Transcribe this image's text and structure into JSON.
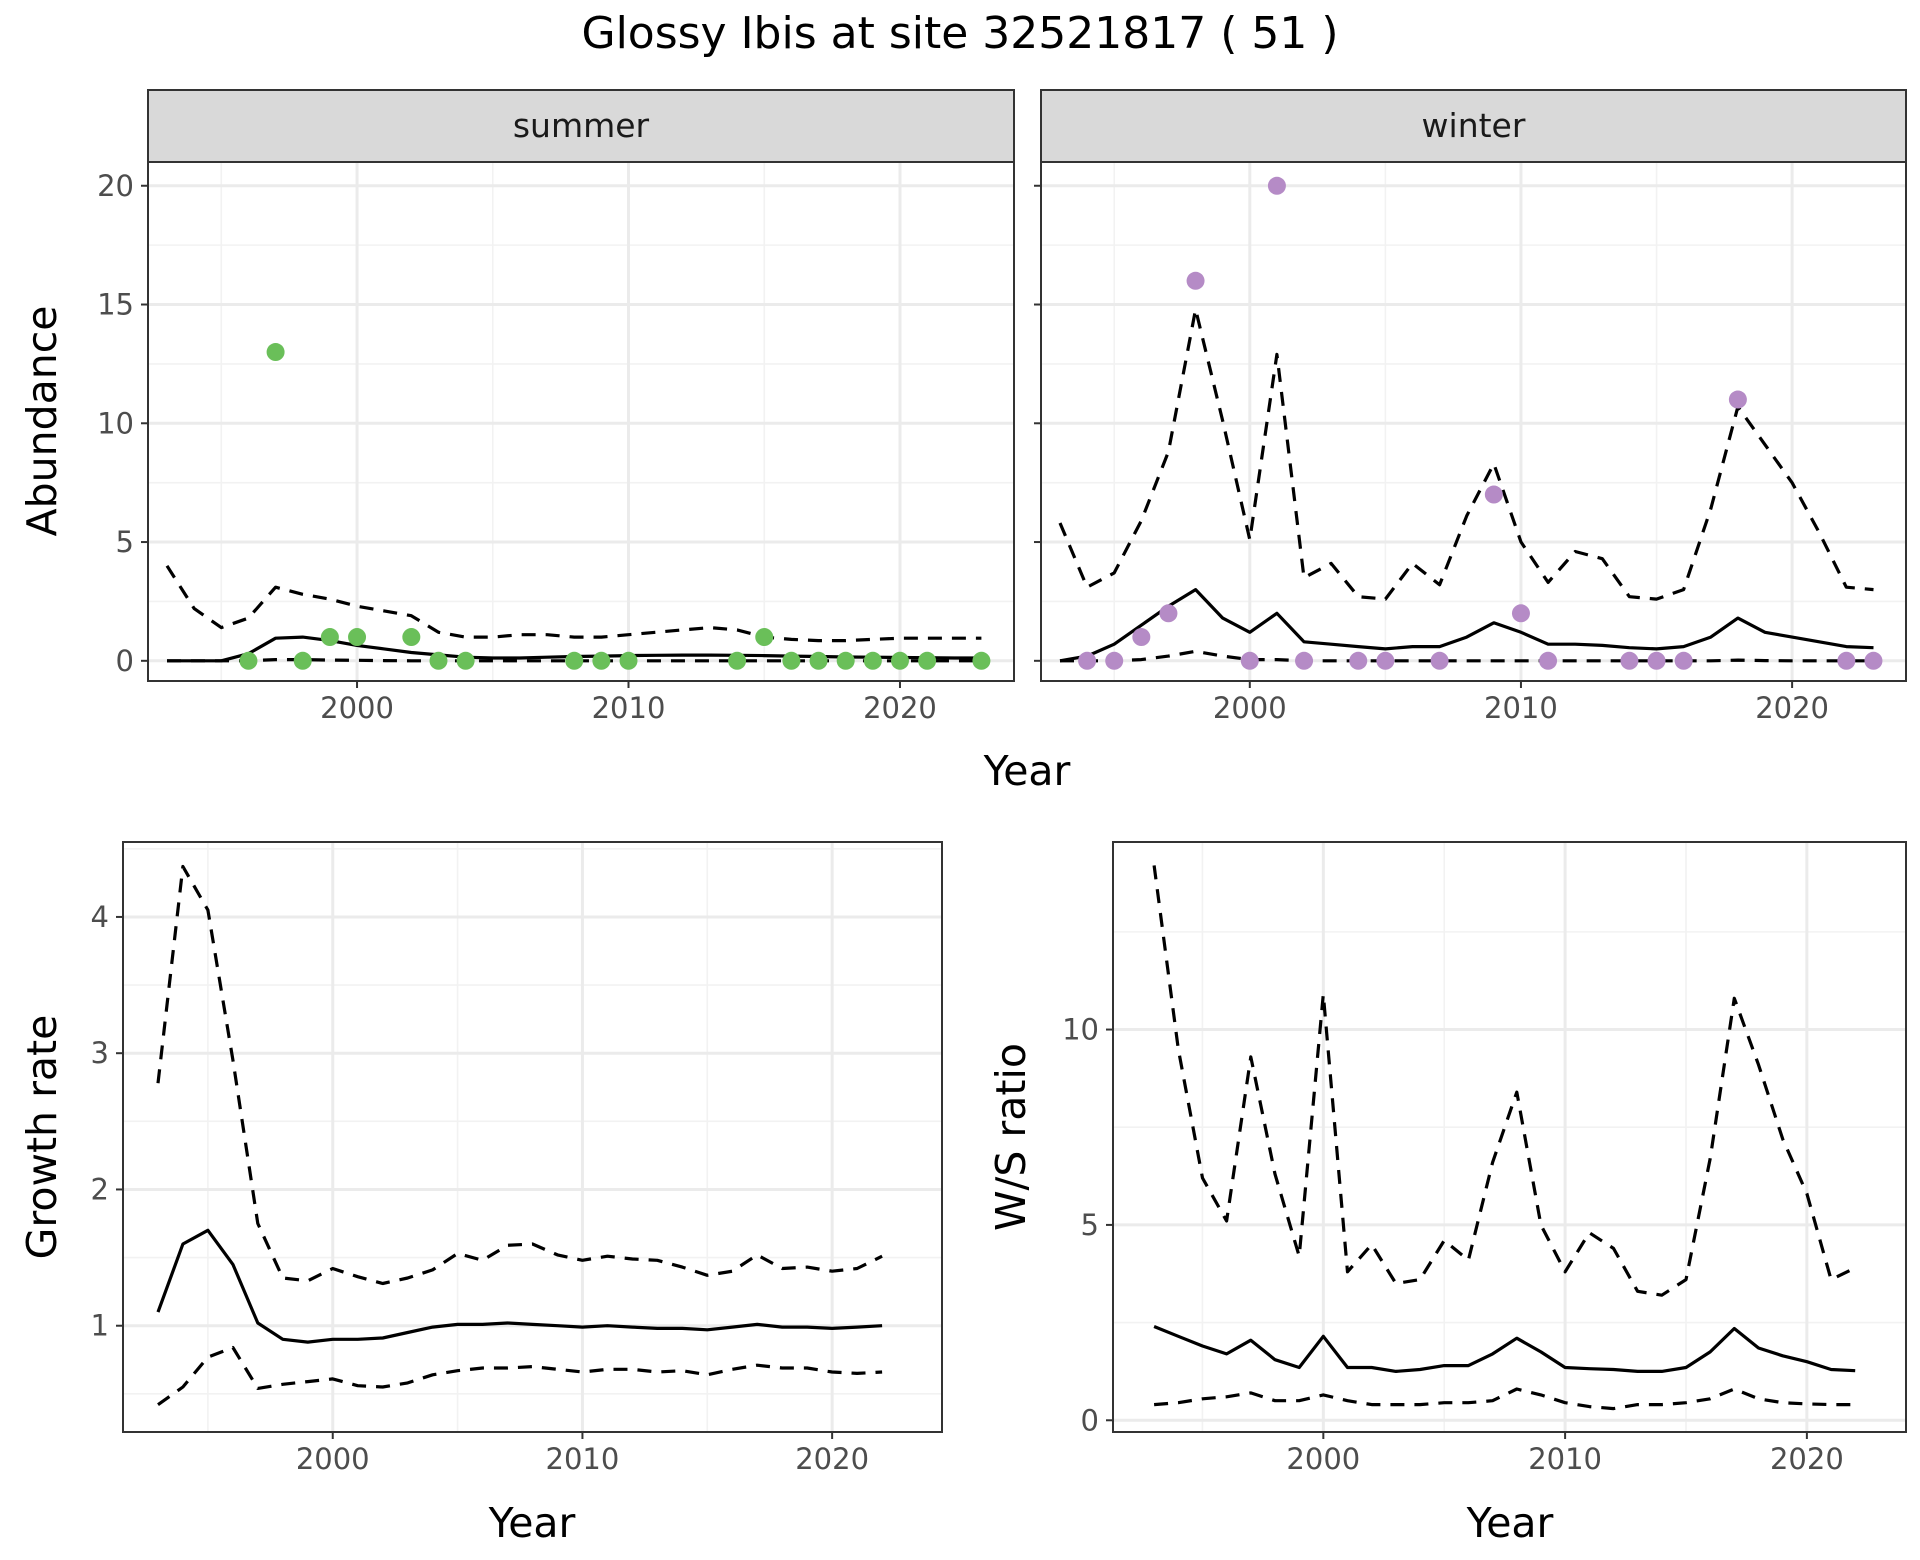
{
  "title": "Glossy Ibis at site 32521817 ( 51 )",
  "colors": {
    "summer": "#6abf59",
    "winter": "#b58bc6",
    "line": "#000000"
  },
  "chart_data": [
    {
      "id": "summer",
      "type": "line",
      "facet_label": "summer",
      "ylabel": "Abundance",
      "xlabel": "",
      "xlim": [
        1992.3,
        2024.2
      ],
      "ylim": [
        -0.85,
        21.0
      ],
      "xticks": [
        2000,
        2010,
        2020
      ],
      "yticks": [
        0,
        5,
        10,
        15,
        20
      ],
      "grid": true,
      "series": [
        {
          "style": "median",
          "x": [
            1993,
            1994,
            1995,
            1996,
            1997,
            1998,
            1999,
            2000,
            2001,
            2002,
            2003,
            2004,
            2005,
            2006,
            2007,
            2008,
            2009,
            2010,
            2011,
            2012,
            2013,
            2014,
            2015,
            2016,
            2017,
            2018,
            2019,
            2020,
            2021,
            2022,
            2023
          ],
          "y": [
            0,
            0,
            0,
            0.3,
            0.95,
            1.0,
            0.85,
            0.65,
            0.5,
            0.35,
            0.25,
            0.15,
            0.12,
            0.12,
            0.15,
            0.18,
            0.2,
            0.22,
            0.23,
            0.24,
            0.24,
            0.23,
            0.22,
            0.2,
            0.18,
            0.16,
            0.15,
            0.14,
            0.13,
            0.12,
            0.12
          ]
        },
        {
          "style": "upper",
          "x": [
            1993,
            1994,
            1995,
            1996,
            1997,
            1998,
            1999,
            2000,
            2001,
            2002,
            2003,
            2004,
            2005,
            2006,
            2007,
            2008,
            2009,
            2010,
            2011,
            2012,
            2013,
            2014,
            2015,
            2016,
            2017,
            2018,
            2019,
            2020,
            2021,
            2022,
            2023
          ],
          "y": [
            4.0,
            2.2,
            1.4,
            1.8,
            3.1,
            2.8,
            2.6,
            2.3,
            2.1,
            1.9,
            1.2,
            1.0,
            1.0,
            1.1,
            1.1,
            1.0,
            1.0,
            1.1,
            1.2,
            1.3,
            1.4,
            1.3,
            1.0,
            0.9,
            0.85,
            0.85,
            0.9,
            0.95,
            0.95,
            0.95,
            0.95
          ]
        },
        {
          "style": "lower",
          "x": [
            1993,
            1994,
            1995,
            1996,
            1997,
            1998,
            1999,
            2000,
            2001,
            2002,
            2003,
            2004,
            2005,
            2006,
            2007,
            2008,
            2009,
            2010,
            2011,
            2012,
            2013,
            2014,
            2015,
            2016,
            2017,
            2018,
            2019,
            2020,
            2021,
            2022,
            2023
          ],
          "y": [
            0,
            0,
            0,
            0,
            0.05,
            0.05,
            0.03,
            0.02,
            0.01,
            0,
            0,
            0,
            0,
            0,
            0,
            0,
            0,
            0,
            0,
            0,
            0,
            0,
            0,
            0,
            0,
            0,
            0,
            0,
            0,
            0,
            0
          ]
        }
      ],
      "points": [
        [
          1996,
          0
        ],
        [
          1997,
          13
        ],
        [
          1998,
          0
        ],
        [
          1999,
          1
        ],
        [
          2000,
          1
        ],
        [
          2002,
          1
        ],
        [
          2003,
          0
        ],
        [
          2004,
          0
        ],
        [
          2008,
          0
        ],
        [
          2009,
          0
        ],
        [
          2010,
          0
        ],
        [
          2014,
          0
        ],
        [
          2015,
          1
        ],
        [
          2016,
          0
        ],
        [
          2017,
          0
        ],
        [
          2018,
          0
        ],
        [
          2019,
          0
        ],
        [
          2020,
          0
        ],
        [
          2021,
          0
        ],
        [
          2023,
          0
        ]
      ]
    },
    {
      "id": "winter",
      "type": "line",
      "facet_label": "winter",
      "ylabel": "",
      "xlabel": "",
      "xlim": [
        1992.3,
        2024.2
      ],
      "ylim": [
        -0.85,
        21.0
      ],
      "xticks": [
        2000,
        2010,
        2020
      ],
      "yticks": [
        0,
        5,
        10,
        15,
        20
      ],
      "grid": true,
      "series": [
        {
          "style": "median",
          "x": [
            1993,
            1994,
            1995,
            1996,
            1997,
            1998,
            1999,
            2000,
            2001,
            2002,
            2003,
            2004,
            2005,
            2006,
            2007,
            2008,
            2009,
            2010,
            2011,
            2012,
            2013,
            2014,
            2015,
            2016,
            2017,
            2018,
            2019,
            2020,
            2021,
            2022,
            2023
          ],
          "y": [
            0,
            0.2,
            0.7,
            1.5,
            2.3,
            3.0,
            1.8,
            1.2,
            2.0,
            0.8,
            0.7,
            0.6,
            0.5,
            0.6,
            0.6,
            1.0,
            1.6,
            1.2,
            0.7,
            0.7,
            0.65,
            0.55,
            0.5,
            0.6,
            1.0,
            1.8,
            1.2,
            1.0,
            0.8,
            0.6,
            0.55
          ]
        },
        {
          "style": "upper",
          "x": [
            1993,
            1994,
            1995,
            1996,
            1997,
            1998,
            1999,
            2000,
            2001,
            2002,
            2003,
            2004,
            2005,
            2006,
            2007,
            2008,
            2009,
            2010,
            2011,
            2012,
            2013,
            2014,
            2015,
            2016,
            2017,
            2018,
            2019,
            2020,
            2021,
            2022,
            2023
          ],
          "y": [
            5.8,
            3.1,
            3.7,
            5.9,
            8.8,
            14.8,
            10.1,
            5.1,
            12.9,
            3.5,
            4.1,
            2.7,
            2.6,
            4.1,
            3.2,
            6.1,
            8.3,
            5.0,
            3.3,
            4.6,
            4.3,
            2.7,
            2.6,
            3.0,
            6.4,
            10.7,
            9.1,
            7.5,
            5.4,
            3.1,
            3.0
          ]
        },
        {
          "style": "lower",
          "x": [
            1993,
            1994,
            1995,
            1996,
            1997,
            1998,
            1999,
            2000,
            2001,
            2002,
            2003,
            2004,
            2005,
            2006,
            2007,
            2008,
            2009,
            2010,
            2011,
            2012,
            2013,
            2014,
            2015,
            2016,
            2017,
            2018,
            2019,
            2020,
            2021,
            2022,
            2023
          ],
          "y": [
            0,
            0,
            0,
            0.05,
            0.2,
            0.4,
            0.2,
            0.05,
            0.05,
            0,
            0,
            0,
            0,
            0,
            0,
            0,
            0,
            0,
            0,
            0,
            0,
            0,
            0,
            0,
            0,
            0.03,
            0.01,
            0,
            0,
            0,
            0
          ]
        }
      ],
      "points": [
        [
          1994,
          0
        ],
        [
          1995,
          0
        ],
        [
          1996,
          1
        ],
        [
          1997,
          2
        ],
        [
          1998,
          16
        ],
        [
          2000,
          0
        ],
        [
          2001,
          20
        ],
        [
          2002,
          0
        ],
        [
          2004,
          0
        ],
        [
          2005,
          0
        ],
        [
          2007,
          0
        ],
        [
          2009,
          7
        ],
        [
          2010,
          2
        ],
        [
          2011,
          0
        ],
        [
          2014,
          0
        ],
        [
          2015,
          0
        ],
        [
          2016,
          0
        ],
        [
          2018,
          11
        ],
        [
          2022,
          0
        ],
        [
          2023,
          0
        ]
      ]
    },
    {
      "id": "growth",
      "type": "line",
      "ylabel": "Growth rate",
      "xlabel": "Year",
      "xlim": [
        1991.6,
        2024.4
      ],
      "ylim": [
        0.22,
        4.55
      ],
      "xticks": [
        2000,
        2010,
        2020
      ],
      "yticks": [
        1,
        2,
        3,
        4
      ],
      "grid": true,
      "series": [
        {
          "style": "median",
          "x": [
            1993,
            1994,
            1995,
            1996,
            1997,
            1998,
            1999,
            2000,
            2001,
            2002,
            2003,
            2004,
            2005,
            2006,
            2007,
            2008,
            2009,
            2010,
            2011,
            2012,
            2013,
            2014,
            2015,
            2016,
            2017,
            2018,
            2019,
            2020,
            2021,
            2022
          ],
          "y": [
            1.1,
            1.6,
            1.7,
            1.45,
            1.02,
            0.9,
            0.88,
            0.9,
            0.9,
            0.91,
            0.95,
            0.99,
            1.01,
            1.01,
            1.02,
            1.01,
            1.0,
            0.99,
            1.0,
            0.99,
            0.98,
            0.98,
            0.97,
            0.99,
            1.01,
            0.99,
            0.99,
            0.98,
            0.99,
            1.0
          ]
        },
        {
          "style": "upper",
          "x": [
            1993,
            1994,
            1995,
            1996,
            1997,
            1998,
            1999,
            2000,
            2001,
            2002,
            2003,
            2004,
            2005,
            2006,
            2007,
            2008,
            2009,
            2010,
            2011,
            2012,
            2013,
            2014,
            2015,
            2016,
            2017,
            2018,
            2019,
            2020,
            2021,
            2022
          ],
          "y": [
            2.78,
            4.37,
            4.05,
            2.95,
            1.75,
            1.35,
            1.33,
            1.42,
            1.36,
            1.31,
            1.35,
            1.41,
            1.53,
            1.48,
            1.59,
            1.6,
            1.52,
            1.48,
            1.51,
            1.49,
            1.48,
            1.43,
            1.37,
            1.4,
            1.52,
            1.42,
            1.43,
            1.4,
            1.42,
            1.51
          ]
        },
        {
          "style": "lower",
          "x": [
            1993,
            1994,
            1995,
            1996,
            1997,
            1998,
            1999,
            2000,
            2001,
            2002,
            2003,
            2004,
            2005,
            2006,
            2007,
            2008,
            2009,
            2010,
            2011,
            2012,
            2013,
            2014,
            2015,
            2016,
            2017,
            2018,
            2019,
            2020,
            2021,
            2022
          ],
          "y": [
            0.42,
            0.55,
            0.77,
            0.84,
            0.54,
            0.57,
            0.59,
            0.61,
            0.56,
            0.55,
            0.58,
            0.64,
            0.67,
            0.69,
            0.69,
            0.7,
            0.68,
            0.66,
            0.68,
            0.68,
            0.66,
            0.67,
            0.64,
            0.68,
            0.71,
            0.69,
            0.69,
            0.66,
            0.65,
            0.66
          ]
        }
      ]
    },
    {
      "id": "ratio",
      "type": "line",
      "ylabel": "W/S ratio",
      "xlabel": "Year",
      "xlim": [
        1991.3,
        2024.1
      ],
      "ylim": [
        -0.3,
        14.8
      ],
      "xticks": [
        2000,
        2010,
        2020
      ],
      "yticks": [
        0,
        5,
        10
      ],
      "grid": true,
      "series": [
        {
          "style": "median",
          "x": [
            1993,
            1994,
            1995,
            1996,
            1997,
            1998,
            1999,
            2000,
            2001,
            2002,
            2003,
            2004,
            2005,
            2006,
            2007,
            2008,
            2009,
            2010,
            2011,
            2012,
            2013,
            2014,
            2015,
            2016,
            2017,
            2018,
            2019,
            2020,
            2021,
            2022
          ],
          "y": [
            2.4,
            2.15,
            1.9,
            1.7,
            2.05,
            1.55,
            1.35,
            2.15,
            1.35,
            1.35,
            1.25,
            1.3,
            1.4,
            1.4,
            1.7,
            2.1,
            1.75,
            1.35,
            1.32,
            1.3,
            1.25,
            1.25,
            1.35,
            1.75,
            2.35,
            1.85,
            1.65,
            1.5,
            1.3,
            1.27
          ]
        },
        {
          "style": "upper",
          "x": [
            1993,
            1994,
            1995,
            1996,
            1997,
            1998,
            1999,
            2000,
            2001,
            2002,
            2003,
            2004,
            2005,
            2006,
            2007,
            2008,
            2009,
            2010,
            2011,
            2012,
            2013,
            2014,
            2015,
            2016,
            2017,
            2018,
            2019,
            2020,
            2021,
            2022
          ],
          "y": [
            14.2,
            9.5,
            6.2,
            5.1,
            9.3,
            6.3,
            4.2,
            10.9,
            3.8,
            4.5,
            3.5,
            3.6,
            4.6,
            4.1,
            6.6,
            8.4,
            5.0,
            3.8,
            4.8,
            4.4,
            3.3,
            3.2,
            3.6,
            6.7,
            10.8,
            9.1,
            7.2,
            5.8,
            3.6,
            3.9
          ]
        },
        {
          "style": "lower",
          "x": [
            1993,
            1994,
            1995,
            1996,
            1997,
            1998,
            1999,
            2000,
            2001,
            2002,
            2003,
            2004,
            2005,
            2006,
            2007,
            2008,
            2009,
            2010,
            2011,
            2012,
            2013,
            2014,
            2015,
            2016,
            2017,
            2018,
            2019,
            2020,
            2021,
            2022
          ],
          "y": [
            0.4,
            0.45,
            0.55,
            0.6,
            0.7,
            0.5,
            0.5,
            0.65,
            0.5,
            0.4,
            0.4,
            0.4,
            0.45,
            0.45,
            0.5,
            0.8,
            0.65,
            0.45,
            0.35,
            0.3,
            0.4,
            0.4,
            0.45,
            0.55,
            0.8,
            0.55,
            0.45,
            0.42,
            0.4,
            0.4
          ]
        }
      ]
    }
  ]
}
